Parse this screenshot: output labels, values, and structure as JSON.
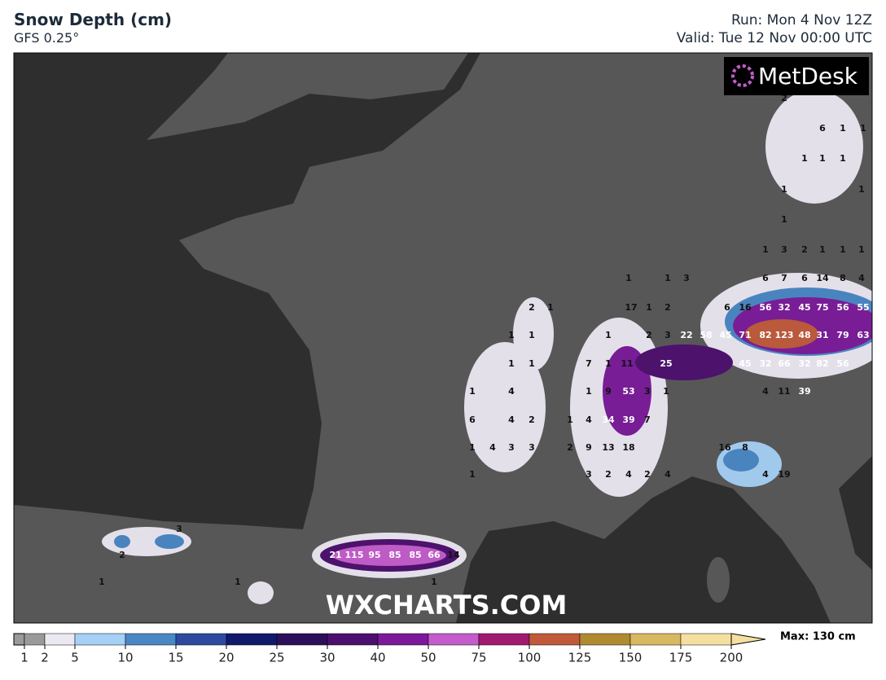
{
  "header": {
    "title": "Snow Depth (cm)",
    "subtitle": "GFS 0.25°",
    "run": "Run: Mon 4 Nov 12Z",
    "valid": "Valid: Tue 12 Nov 00:00 UTC"
  },
  "logo": "MetDesk",
  "watermark": "WXCHARTS.COM",
  "map_labels": [
    1,
    3,
    2,
    1,
    1,
    1,
    6,
    7,
    6,
    14,
    8,
    4,
    6,
    16,
    56,
    32,
    45,
    75,
    56,
    55,
    17,
    1,
    2,
    2,
    3,
    22,
    58,
    45,
    71,
    82,
    123,
    48,
    31,
    79,
    63,
    25,
    45,
    32,
    66,
    32,
    82,
    56,
    7,
    1,
    11,
    1,
    9,
    53,
    3,
    1,
    4,
    11,
    39,
    1,
    4,
    34,
    39,
    7,
    2,
    9,
    13,
    18,
    3,
    2,
    4,
    2,
    4,
    16,
    8,
    4,
    19,
    2,
    1,
    1,
    1,
    1,
    1,
    1,
    1,
    4,
    6,
    4,
    2,
    1,
    4,
    3,
    3,
    1,
    1,
    1,
    3,
    2,
    6,
    1,
    1,
    1,
    1,
    1,
    1,
    1,
    1,
    21,
    115,
    95,
    85,
    85,
    66,
    14,
    1,
    3,
    2,
    1,
    1
  ],
  "legend": {
    "ticks": [
      1,
      2,
      5,
      10,
      15,
      20,
      25,
      30,
      40,
      50,
      75,
      100,
      125,
      150,
      175,
      200
    ],
    "colors": [
      "#9a9a9a",
      "#ece8f2",
      "#a6d0f5",
      "#4a87c5",
      "#2e4a9e",
      "#10196c",
      "#2c0f5a",
      "#4c0f6e",
      "#7a1a9a",
      "#c45ccc",
      "#a01a70",
      "#c05a3a",
      "#b08a30",
      "#d8b860",
      "#f5dfa0"
    ],
    "max": "Max: 130 cm"
  }
}
